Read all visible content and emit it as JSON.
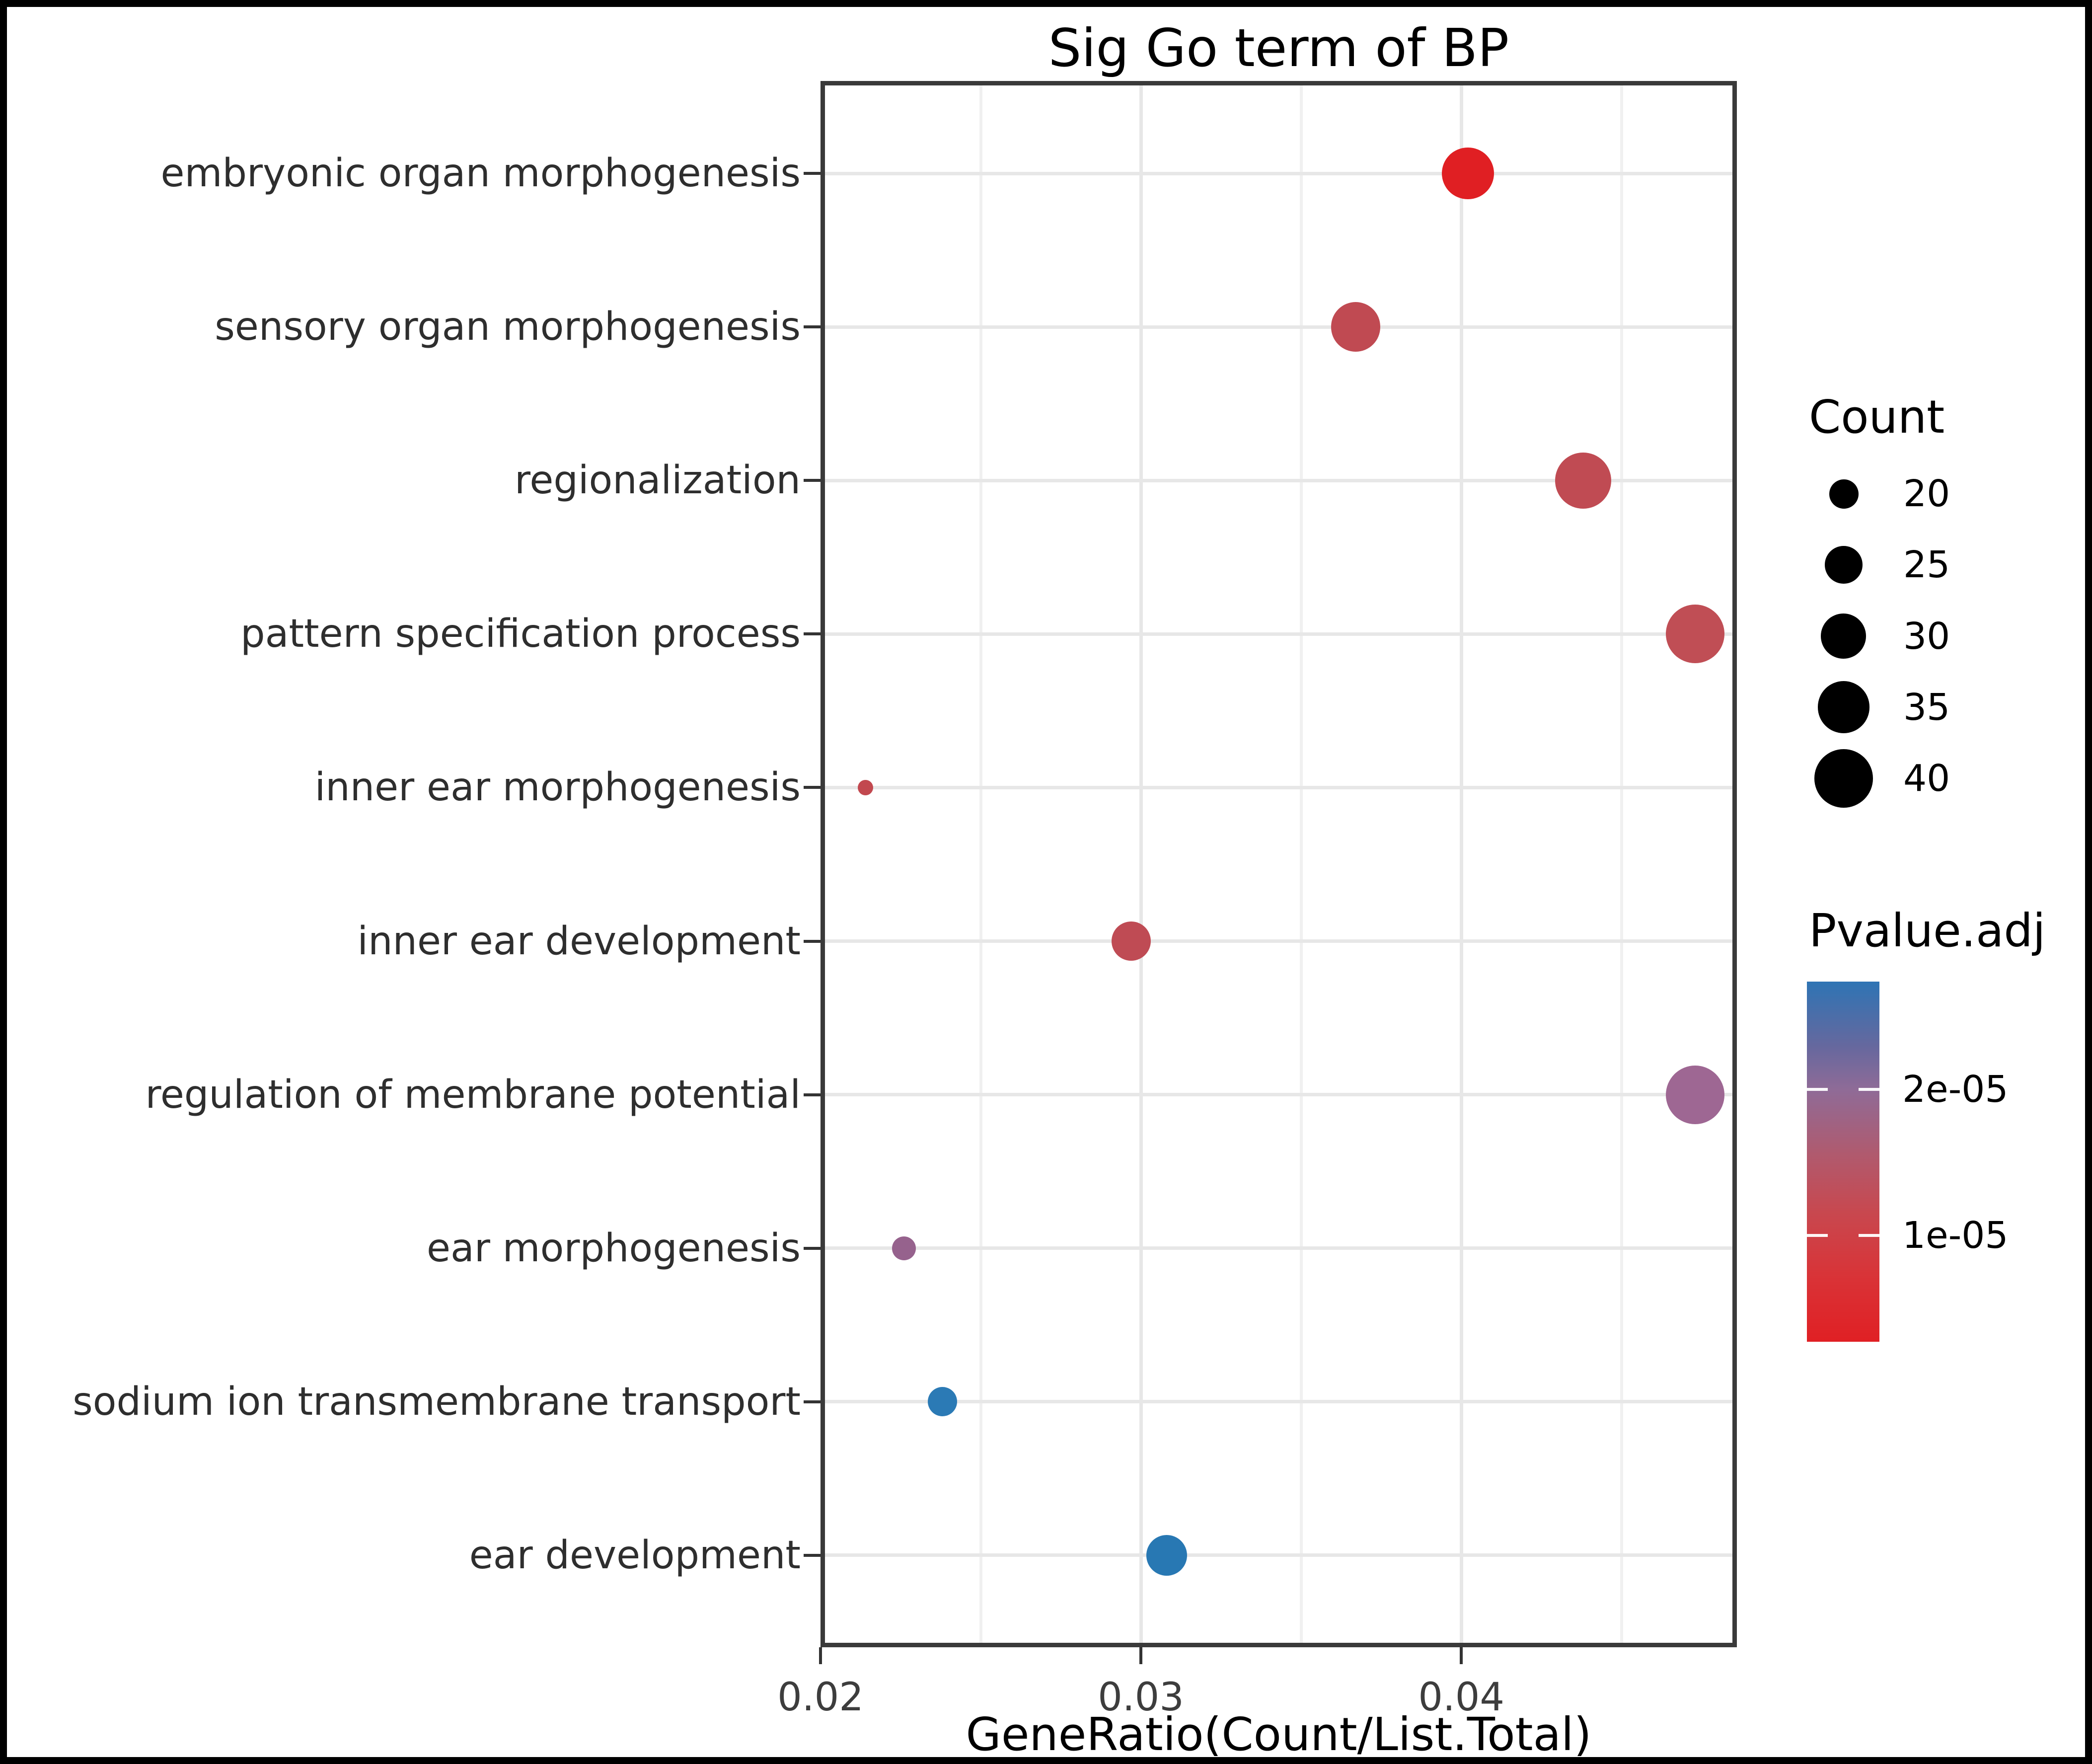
{
  "page": {
    "title": "Sig Go term of BP"
  },
  "chart_data": {
    "type": "scatter",
    "title": "Sig Go term of BP",
    "xlabel": "GeneRatio(Count/List.Total)",
    "ylabel": "",
    "grid": true,
    "legend_position": "right",
    "xlim": [
      0.02,
      0.0486
    ],
    "x_tick_labels": [
      "0.02",
      "0.03",
      "0.04"
    ],
    "x_tick_values": [
      0.02,
      0.03,
      0.04
    ],
    "x_minor_tick_values": [
      0.025,
      0.035,
      0.045
    ],
    "categories": [
      "embryonic organ morphogenesis",
      "sensory organ morphogenesis",
      "regionalization",
      "pattern specification process",
      "inner ear morphogenesis",
      "inner ear development",
      "regulation of membrane potential",
      "ear morphogenesis",
      "sodium ion transmembrane transport",
      "ear development"
    ],
    "points": [
      {
        "term": "embryonic organ morphogenesis",
        "gene_ratio": 0.0402,
        "count": 35,
        "pvalue_adj": 3e-06,
        "color": "#e01f23"
      },
      {
        "term": "sensory organ morphogenesis",
        "gene_ratio": 0.0367,
        "count": 33,
        "pvalue_adj": 9e-06,
        "color": "#c04a52"
      },
      {
        "term": "regionalization",
        "gene_ratio": 0.0438,
        "count": 38,
        "pvalue_adj": 9e-06,
        "color": "#c04b53"
      },
      {
        "term": "pattern specification process",
        "gene_ratio": 0.0473,
        "count": 40,
        "pvalue_adj": 1.1e-05,
        "color": "#c04e55"
      },
      {
        "term": "inner ear morphogenesis",
        "gene_ratio": 0.0214,
        "count": 13,
        "pvalue_adj": 9e-06,
        "color": "#c2484f"
      },
      {
        "term": "inner ear development",
        "gene_ratio": 0.0297,
        "count": 26,
        "pvalue_adj": 1e-05,
        "color": "#bf4b54"
      },
      {
        "term": "regulation of membrane potential",
        "gene_ratio": 0.0473,
        "count": 40,
        "pvalue_adj": 2e-05,
        "color": "#9e6793"
      },
      {
        "term": "ear morphogenesis",
        "gene_ratio": 0.0226,
        "count": 17,
        "pvalue_adj": 2.1e-05,
        "color": "#96628d"
      },
      {
        "term": "sodium ion transmembrane transport",
        "gene_ratio": 0.0238,
        "count": 20,
        "pvalue_adj": 2.7e-05,
        "color": "#2b7ab5"
      },
      {
        "term": "ear development",
        "gene_ratio": 0.0308,
        "count": 27,
        "pvalue_adj": 2.7e-05,
        "color": "#2878b3"
      }
    ],
    "size_legend": {
      "title": "Count",
      "values": [
        20,
        25,
        30,
        35,
        40
      ],
      "symbol_color": "#000000"
    },
    "color_legend": {
      "title": "Pvalue.adj",
      "tick_labels": [
        "2e-05",
        "1e-05"
      ],
      "tick_values": [
        2e-05,
        1e-05
      ],
      "gradient_top_color": "#2e74b4",
      "gradient_bottom_color": "#e02024",
      "value_at_top": 2.7e-05,
      "value_at_bottom": 3e-06
    }
  }
}
